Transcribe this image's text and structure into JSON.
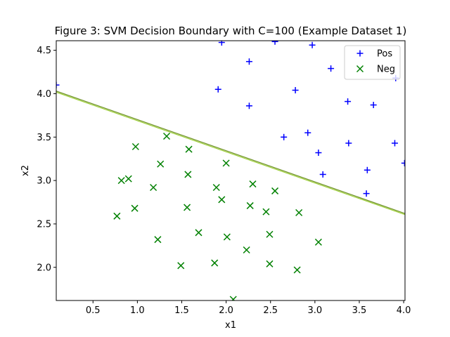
{
  "chart_data": {
    "type": "scatter",
    "title": "Figure 3: SVM Decision Boundary with C=100 (Example Dataset 1)",
    "xlabel": "x1",
    "ylabel": "x2",
    "xlim": [
      0.086,
      4.015
    ],
    "ylim": [
      1.618,
      4.61
    ],
    "xticks": [
      "0.5",
      "1.0",
      "1.5",
      "2.0",
      "2.5",
      "3.0",
      "3.5",
      "4.0"
    ],
    "xtick_values": [
      0.5,
      1.0,
      1.5,
      2.0,
      2.5,
      3.0,
      3.5,
      4.0
    ],
    "yticks": [
      "2.0",
      "2.5",
      "3.0",
      "3.5",
      "4.0",
      "4.5"
    ],
    "ytick_values": [
      2.0,
      2.5,
      3.0,
      3.5,
      4.0,
      4.5
    ],
    "grid": false,
    "legend_position": "top-right",
    "series": [
      {
        "name": "Pos",
        "marker": "plus",
        "color": "#0000ff",
        "points": [
          [
            0.086,
            4.1
          ],
          [
            1.95,
            4.59
          ],
          [
            2.55,
            4.6
          ],
          [
            2.97,
            4.56
          ],
          [
            2.26,
            4.37
          ],
          [
            3.18,
            4.29
          ],
          [
            3.91,
            4.18
          ],
          [
            1.91,
            4.05
          ],
          [
            2.78,
            4.04
          ],
          [
            3.37,
            3.91
          ],
          [
            2.26,
            3.86
          ],
          [
            3.66,
            3.87
          ],
          [
            2.92,
            3.55
          ],
          [
            2.65,
            3.5
          ],
          [
            3.38,
            3.43
          ],
          [
            3.9,
            3.43
          ],
          [
            3.04,
            3.32
          ],
          [
            3.09,
            3.07
          ],
          [
            3.59,
            3.12
          ],
          [
            4.01,
            3.2
          ],
          [
            3.58,
            2.85
          ]
        ]
      },
      {
        "name": "Neg",
        "marker": "x",
        "color": "#008000",
        "points": [
          [
            1.33,
            3.51
          ],
          [
            0.98,
            3.39
          ],
          [
            1.58,
            3.36
          ],
          [
            1.26,
            3.19
          ],
          [
            2.0,
            3.2
          ],
          [
            0.82,
            3.0
          ],
          [
            0.9,
            3.02
          ],
          [
            1.57,
            3.07
          ],
          [
            1.18,
            2.92
          ],
          [
            1.89,
            2.92
          ],
          [
            2.3,
            2.96
          ],
          [
            2.55,
            2.88
          ],
          [
            1.95,
            2.78
          ],
          [
            2.27,
            2.71
          ],
          [
            0.97,
            2.68
          ],
          [
            1.56,
            2.69
          ],
          [
            2.45,
            2.64
          ],
          [
            2.82,
            2.63
          ],
          [
            0.77,
            2.59
          ],
          [
            1.69,
            2.4
          ],
          [
            2.01,
            2.35
          ],
          [
            2.49,
            2.38
          ],
          [
            1.23,
            2.32
          ],
          [
            3.04,
            2.29
          ],
          [
            2.23,
            2.2
          ],
          [
            1.87,
            2.05
          ],
          [
            1.49,
            2.02
          ],
          [
            2.49,
            2.04
          ],
          [
            2.8,
            1.97
          ],
          [
            2.08,
            1.63
          ]
        ]
      }
    ],
    "boundary": {
      "color": "#9acd32",
      "x": [
        0.086,
        4.015
      ],
      "y": [
        4.03,
        2.62
      ]
    }
  }
}
